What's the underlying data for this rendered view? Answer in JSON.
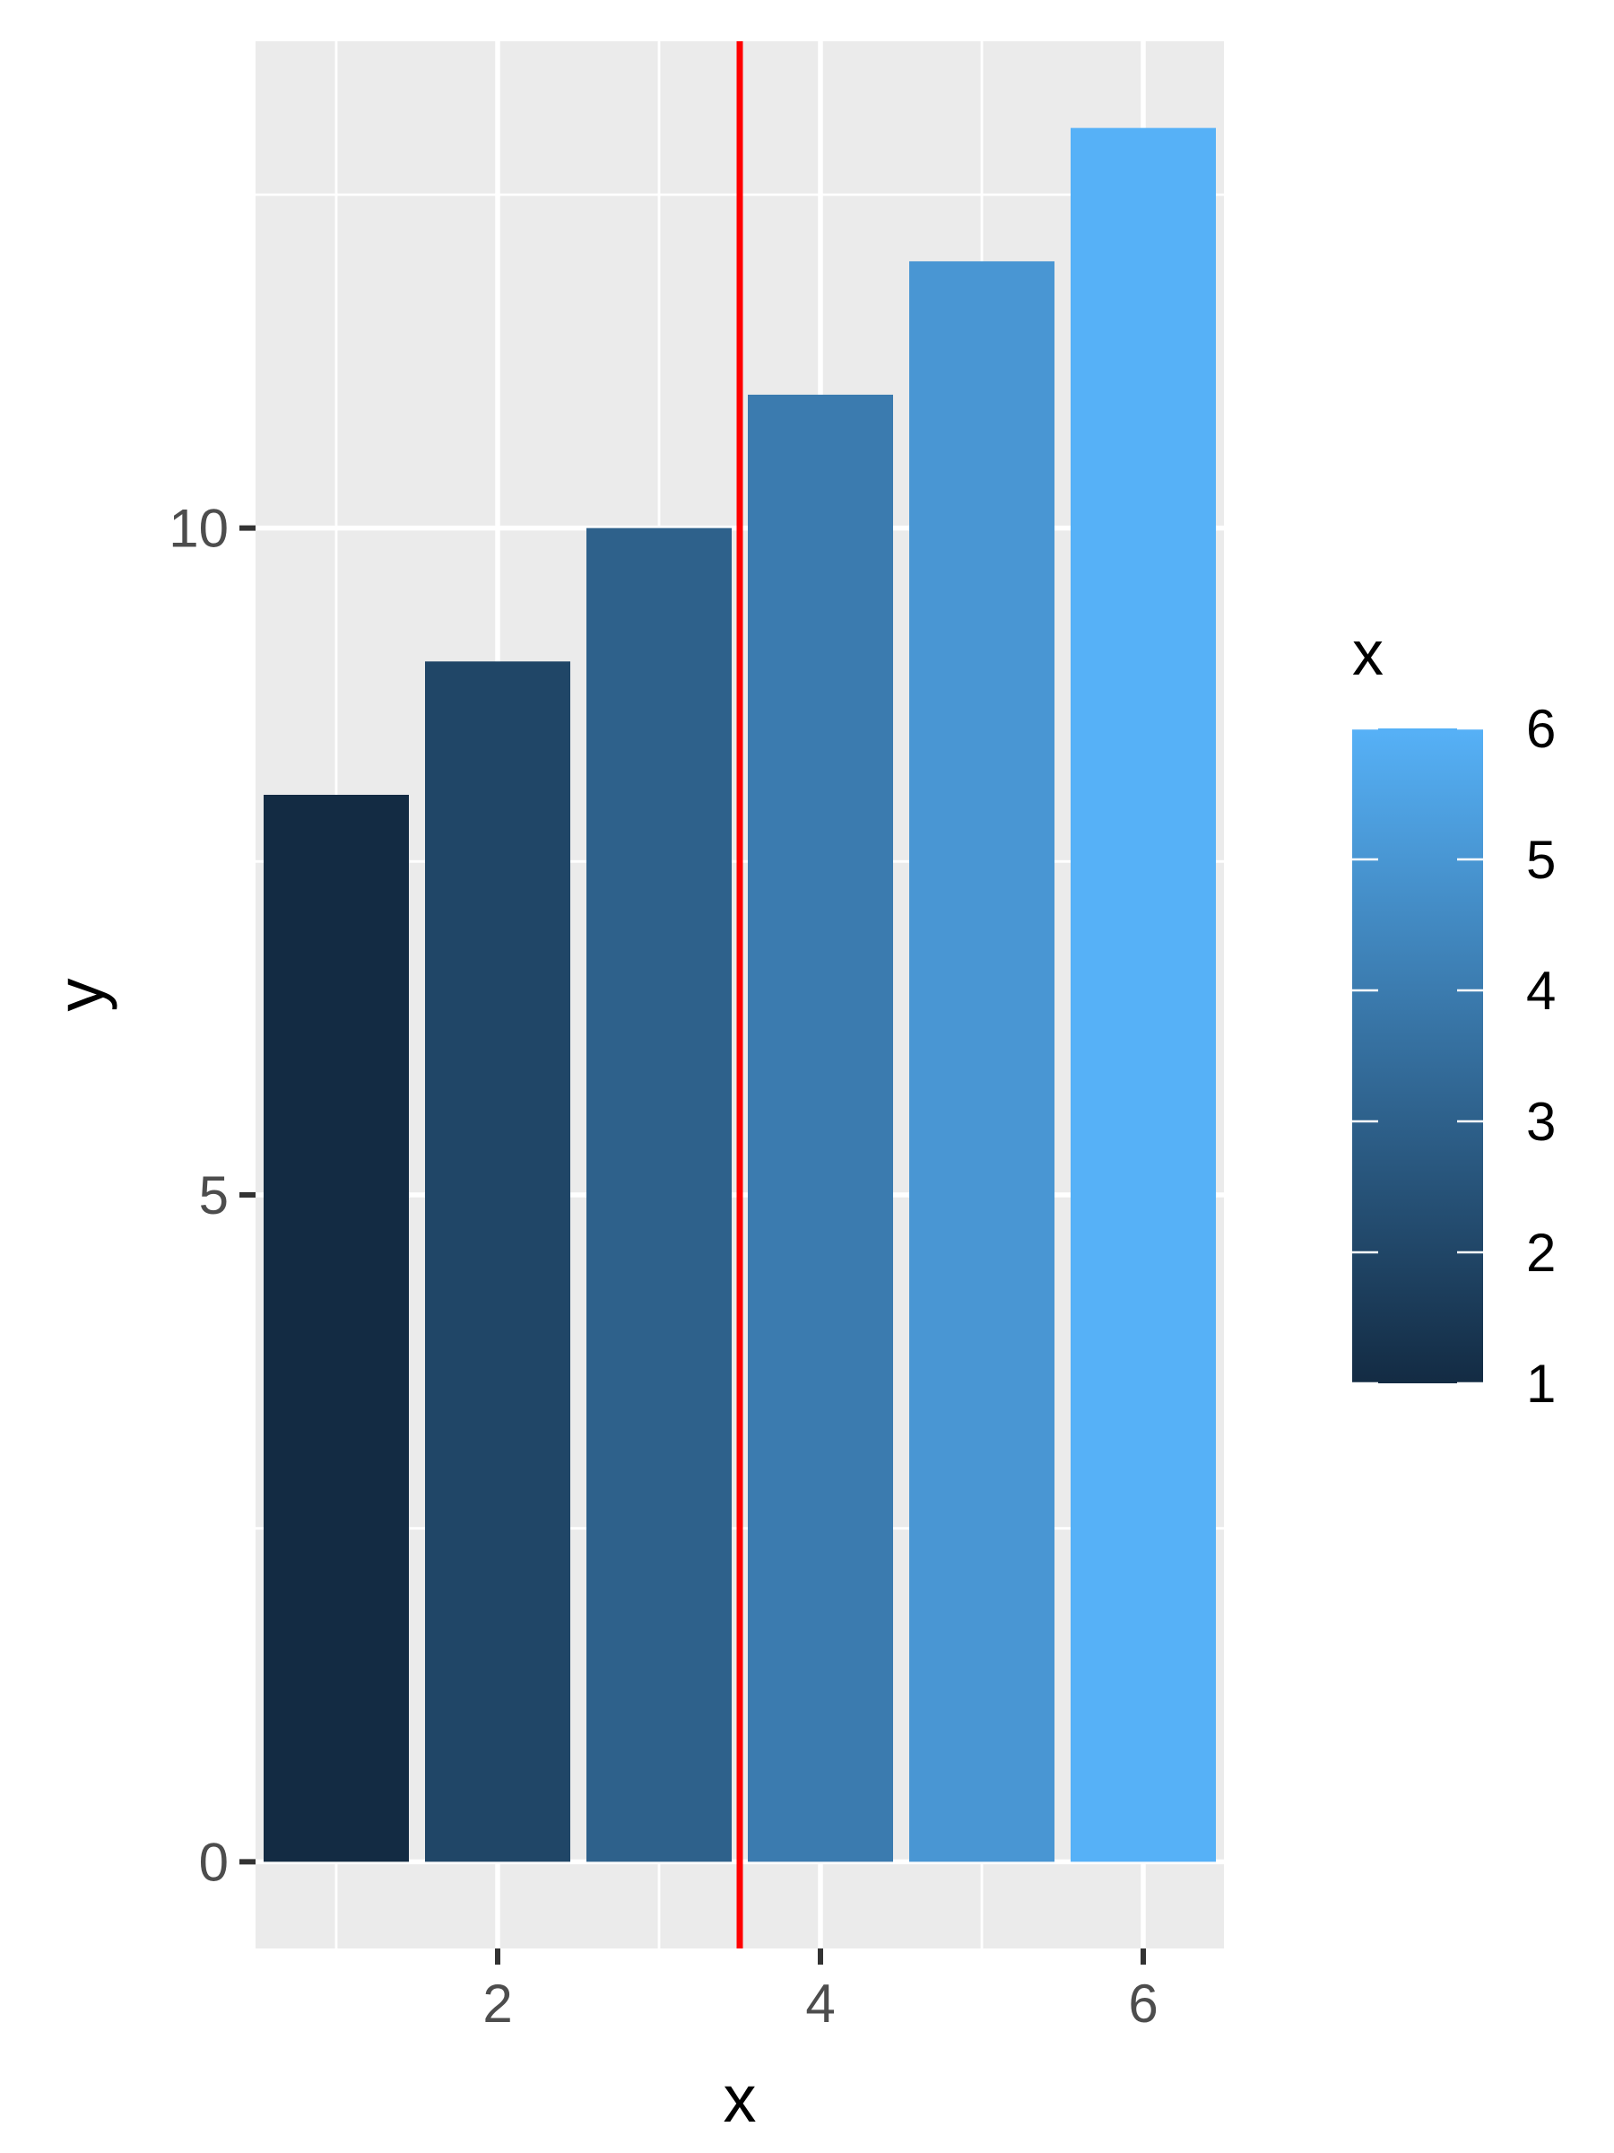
{
  "chart_data": {
    "type": "bar",
    "x": [
      1,
      2,
      3,
      4,
      5,
      6
    ],
    "values": [
      8,
      9,
      10,
      11,
      12,
      13
    ],
    "title": "",
    "xlabel": "x",
    "ylabel": "y",
    "xlim": [
      0.5,
      6.5
    ],
    "ylim": [
      -0.65,
      13.65
    ],
    "xticks": [
      2,
      4,
      6
    ],
    "yticks": [
      0,
      5,
      10
    ],
    "grid": true,
    "vline": {
      "x": 3.5,
      "color": "#ff0000"
    },
    "colors": {
      "panel_background": "#ebebeb",
      "grid": "#ffffff",
      "fill_low": "#132b43",
      "fill_high": "#56b1f7"
    },
    "legend": {
      "title": "x",
      "placement": "right",
      "range": [
        1,
        6
      ],
      "breaks": [
        1,
        2,
        3,
        4,
        5,
        6
      ]
    }
  }
}
